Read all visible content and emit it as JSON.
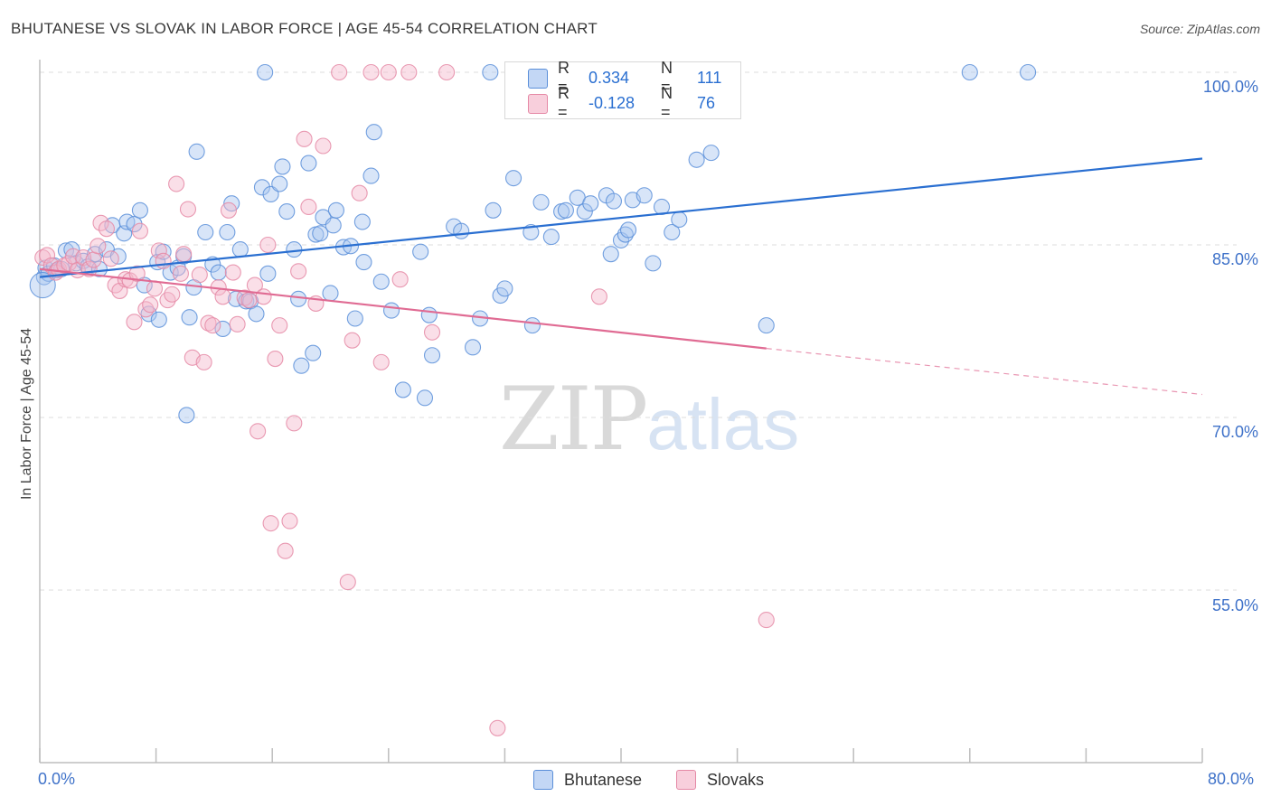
{
  "title": "BHUTANESE VS SLOVAK IN LABOR FORCE | AGE 45-54 CORRELATION CHART",
  "source": "Source: ZipAtlas.com",
  "watermark": {
    "zip": "ZIP",
    "atlas": "atlas"
  },
  "legend": {
    "rows": [
      {
        "r_label": "R =",
        "r_value": "0.334",
        "n_label": "N =",
        "n_value": "111",
        "color": "#a9c6f0"
      },
      {
        "r_label": "R =",
        "r_value": "-0.128",
        "n_label": "N =",
        "n_value": "76",
        "color": "#f5b8cb"
      }
    ]
  },
  "bottom_legend": [
    {
      "label": "Bhutanese",
      "color": "#a9c6f0"
    },
    {
      "label": "Slovaks",
      "color": "#f5b8cb"
    }
  ],
  "chart_data": {
    "type": "scatter",
    "ylabel": "In Labor Force | Age 45-54",
    "xlabel": "",
    "xlim": [
      0,
      80
    ],
    "ylim": [
      40,
      102
    ],
    "x_tick_labels": [
      "0.0%",
      "80.0%"
    ],
    "y_tick_labels": [
      "100.0%",
      "85.0%",
      "70.0%",
      "55.0%"
    ],
    "y_ticks": [
      100,
      85,
      70,
      55
    ],
    "grid": true,
    "series": [
      {
        "name": "Bhutanese",
        "color": "#5b8fd9",
        "fill": "#a9c6f0",
        "trend": {
          "x": [
            0,
            80
          ],
          "y": [
            82.2,
            92.5
          ],
          "color": "#2a6fd1"
        },
        "points": [
          [
            0.3,
            82.2
          ],
          [
            0.4,
            83.0
          ],
          [
            0.6,
            82.5
          ],
          [
            1.0,
            83.2
          ],
          [
            1.2,
            82.8
          ],
          [
            1.8,
            84.5
          ],
          [
            2.2,
            84.6
          ],
          [
            2.5,
            83.4
          ],
          [
            3.0,
            83.6
          ],
          [
            3.3,
            83.1
          ],
          [
            3.8,
            84.2
          ],
          [
            4.1,
            82.9
          ],
          [
            4.6,
            84.6
          ],
          [
            5.0,
            86.7
          ],
          [
            5.4,
            84.0
          ],
          [
            5.8,
            86.0
          ],
          [
            6.0,
            87.0
          ],
          [
            6.5,
            86.8
          ],
          [
            6.9,
            88.0
          ],
          [
            7.2,
            81.5
          ],
          [
            7.5,
            79.0
          ],
          [
            8.1,
            83.5
          ],
          [
            8.2,
            78.5
          ],
          [
            8.5,
            84.4
          ],
          [
            9.0,
            82.6
          ],
          [
            9.5,
            83.0
          ],
          [
            9.9,
            84.0
          ],
          [
            10.1,
            70.2
          ],
          [
            10.3,
            78.7
          ],
          [
            10.6,
            81.3
          ],
          [
            10.8,
            93.1
          ],
          [
            11.4,
            86.1
          ],
          [
            11.9,
            83.3
          ],
          [
            12.3,
            82.6
          ],
          [
            12.6,
            77.7
          ],
          [
            12.9,
            86.1
          ],
          [
            13.2,
            88.6
          ],
          [
            13.5,
            80.3
          ],
          [
            13.8,
            84.6
          ],
          [
            14.2,
            80.1
          ],
          [
            14.5,
            80.1
          ],
          [
            14.9,
            79.0
          ],
          [
            15.3,
            90.0
          ],
          [
            15.5,
            100.0
          ],
          [
            15.7,
            82.5
          ],
          [
            15.9,
            89.4
          ],
          [
            16.5,
            90.3
          ],
          [
            16.7,
            91.8
          ],
          [
            17.0,
            87.9
          ],
          [
            17.5,
            84.6
          ],
          [
            17.8,
            80.3
          ],
          [
            18.0,
            74.5
          ],
          [
            18.5,
            92.1
          ],
          [
            18.8,
            75.6
          ],
          [
            19.0,
            85.9
          ],
          [
            19.3,
            86.0
          ],
          [
            19.5,
            87.4
          ],
          [
            20.0,
            80.8
          ],
          [
            20.2,
            86.7
          ],
          [
            20.4,
            88.0
          ],
          [
            20.9,
            84.8
          ],
          [
            21.4,
            84.9
          ],
          [
            21.7,
            78.6
          ],
          [
            22.2,
            87.0
          ],
          [
            22.3,
            83.5
          ],
          [
            22.8,
            91.0
          ],
          [
            23.0,
            94.8
          ],
          [
            23.5,
            81.8
          ],
          [
            24.2,
            79.3
          ],
          [
            25.0,
            72.4
          ],
          [
            26.2,
            84.4
          ],
          [
            26.5,
            71.7
          ],
          [
            26.8,
            78.9
          ],
          [
            27.0,
            75.4
          ],
          [
            28.5,
            86.6
          ],
          [
            29.0,
            86.2
          ],
          [
            29.8,
            76.1
          ],
          [
            30.3,
            78.6
          ],
          [
            31.0,
            100.0
          ],
          [
            31.2,
            88.0
          ],
          [
            31.7,
            80.6
          ],
          [
            32.0,
            81.2
          ],
          [
            32.6,
            90.8
          ],
          [
            33.8,
            86.1
          ],
          [
            33.9,
            78.0
          ],
          [
            34.5,
            88.7
          ],
          [
            35.2,
            85.7
          ],
          [
            35.9,
            87.9
          ],
          [
            36.2,
            88.0
          ],
          [
            37.0,
            89.1
          ],
          [
            37.5,
            87.9
          ],
          [
            37.9,
            88.6
          ],
          [
            39.0,
            89.3
          ],
          [
            39.3,
            84.2
          ],
          [
            39.5,
            88.8
          ],
          [
            40.0,
            85.4
          ],
          [
            40.3,
            85.9
          ],
          [
            40.5,
            86.3
          ],
          [
            40.8,
            88.9
          ],
          [
            41.6,
            89.3
          ],
          [
            42.2,
            83.4
          ],
          [
            42.8,
            88.3
          ],
          [
            43.5,
            86.1
          ],
          [
            44.0,
            87.2
          ],
          [
            45.2,
            92.4
          ],
          [
            46.2,
            93.0
          ],
          [
            50.0,
            78.0
          ],
          [
            64.0,
            100.0
          ],
          [
            68.0,
            100.0
          ],
          [
            1.5,
            82.9
          ],
          [
            0.2,
            81.5
          ]
        ]
      },
      {
        "name": "Slovaks",
        "color": "#e589a6",
        "fill": "#f5b8cb",
        "trend": {
          "x": [
            0,
            50
          ],
          "y": [
            82.9,
            76.0
          ],
          "dash_x": [
            50,
            80
          ],
          "dash_y": [
            76.0,
            72.0
          ],
          "color": "#e06b93"
        },
        "points": [
          [
            0.2,
            83.9
          ],
          [
            0.5,
            84.1
          ],
          [
            0.8,
            83.2
          ],
          [
            1.1,
            82.6
          ],
          [
            1.3,
            82.9
          ],
          [
            1.7,
            83.2
          ],
          [
            2.0,
            83.4
          ],
          [
            2.3,
            84.0
          ],
          [
            2.6,
            82.8
          ],
          [
            3.0,
            83.9
          ],
          [
            3.4,
            82.9
          ],
          [
            3.7,
            83.7
          ],
          [
            4.0,
            84.9
          ],
          [
            4.2,
            86.9
          ],
          [
            4.6,
            86.4
          ],
          [
            4.9,
            83.8
          ],
          [
            5.2,
            81.5
          ],
          [
            5.5,
            81.0
          ],
          [
            5.9,
            82.0
          ],
          [
            6.2,
            81.9
          ],
          [
            6.5,
            78.3
          ],
          [
            6.7,
            82.5
          ],
          [
            6.9,
            86.2
          ],
          [
            7.3,
            79.4
          ],
          [
            7.6,
            79.8
          ],
          [
            7.9,
            81.2
          ],
          [
            8.2,
            84.5
          ],
          [
            8.5,
            83.6
          ],
          [
            8.8,
            80.2
          ],
          [
            9.1,
            80.7
          ],
          [
            9.4,
            90.3
          ],
          [
            9.7,
            82.5
          ],
          [
            9.9,
            84.2
          ],
          [
            10.2,
            88.1
          ],
          [
            10.5,
            75.2
          ],
          [
            11.0,
            82.4
          ],
          [
            11.3,
            74.8
          ],
          [
            11.6,
            78.2
          ],
          [
            11.9,
            78.0
          ],
          [
            12.3,
            81.3
          ],
          [
            12.6,
            80.5
          ],
          [
            13.0,
            88.0
          ],
          [
            13.3,
            82.6
          ],
          [
            13.6,
            78.1
          ],
          [
            14.1,
            80.4
          ],
          [
            14.4,
            80.2
          ],
          [
            14.8,
            81.5
          ],
          [
            15.0,
            68.8
          ],
          [
            15.4,
            80.5
          ],
          [
            15.7,
            85.0
          ],
          [
            15.9,
            60.8
          ],
          [
            16.2,
            75.1
          ],
          [
            16.5,
            78.0
          ],
          [
            16.9,
            58.4
          ],
          [
            17.2,
            61.0
          ],
          [
            17.5,
            69.5
          ],
          [
            17.8,
            82.7
          ],
          [
            18.2,
            94.2
          ],
          [
            18.5,
            88.3
          ],
          [
            19.0,
            79.9
          ],
          [
            19.5,
            93.6
          ],
          [
            20.6,
            100.0
          ],
          [
            21.2,
            55.7
          ],
          [
            21.5,
            76.7
          ],
          [
            22.0,
            89.5
          ],
          [
            22.8,
            100.0
          ],
          [
            23.5,
            74.8
          ],
          [
            24.0,
            100.0
          ],
          [
            24.8,
            82.0
          ],
          [
            25.4,
            100.0
          ],
          [
            27.0,
            77.4
          ],
          [
            28.0,
            100.0
          ],
          [
            31.5,
            43.0
          ],
          [
            34.0,
            100.0
          ],
          [
            38.5,
            80.5
          ],
          [
            50.0,
            52.4
          ]
        ]
      }
    ]
  }
}
